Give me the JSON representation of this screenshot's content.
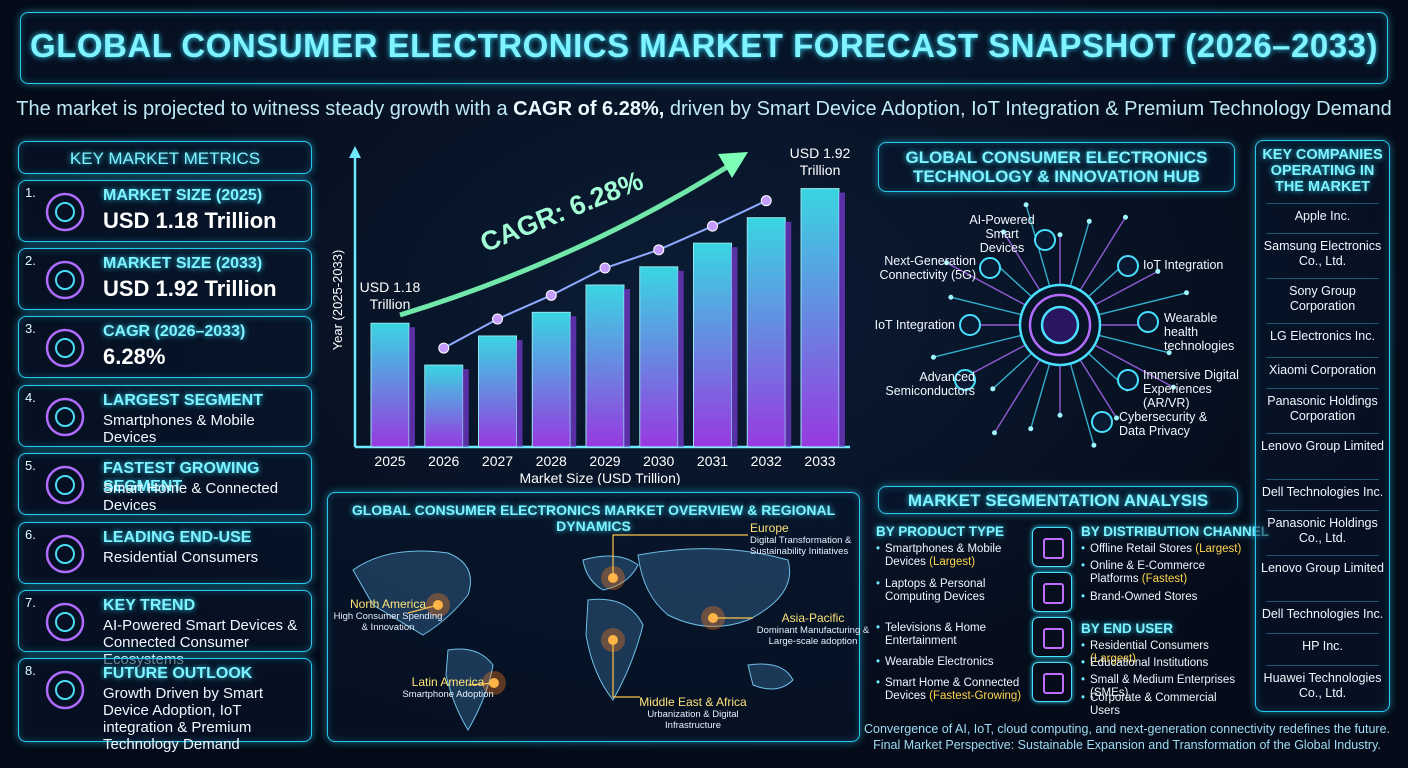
{
  "header": {
    "title": "GLOBAL CONSUMER ELECTRONICS MARKET FORECAST SNAPSHOT (2026–2033)",
    "subtitle_before": "The market is projected to witness steady growth with a ",
    "subtitle_bold": "CAGR of 6.28%,",
    "subtitle_after": " driven by Smart Device Adoption, IoT Integration & Premium Technology Demand"
  },
  "metrics": {
    "title": "KEY MARKET METRICS",
    "items": [
      {
        "number": "1.",
        "label": "MARKET SIZE (2025)",
        "value": "USD 1.18 Trillion"
      },
      {
        "number": "2.",
        "label": "MARKET SIZE (2033)",
        "value": "USD 1.92 Trillion"
      },
      {
        "number": "3.",
        "label": "CAGR (2026–2033)",
        "value": "6.28%"
      },
      {
        "number": "4.",
        "label": "LARGEST SEGMENT",
        "value": "Smartphones & Mobile Devices"
      },
      {
        "number": "5.",
        "label": "FASTEST GROWING SEGMENT",
        "value": "Smart Home & Connected Devices"
      },
      {
        "number": "6.",
        "label": "LEADING END-USE",
        "value": "Residential Consumers"
      },
      {
        "number": "7.",
        "label": "KEY TREND",
        "value": "AI-Powered Smart Devices & Connected Consumer Ecosystems"
      },
      {
        "number": "8.",
        "label": "FUTURE OUTLOOK",
        "value": "Growth Driven by Smart Device Adoption, IoT integration & Premium Technology Demand"
      }
    ]
  },
  "chart_data": {
    "type": "bar",
    "categories": [
      "2025",
      "2026",
      "2027",
      "2028",
      "2029",
      "2030",
      "2031",
      "2032",
      "2033"
    ],
    "values": [
      1.18,
      0.95,
      1.11,
      1.24,
      1.39,
      1.49,
      1.62,
      1.76,
      1.92
    ],
    "value_labels": [
      "USD 1.18 Trillion",
      null,
      null,
      null,
      null,
      null,
      null,
      null,
      "USD 1.92 Trillion"
    ],
    "ylim": [
      0.5,
      2.0
    ],
    "x_label": "Market Size (USD Trillion)",
    "y_label": "Year (2025-2033)",
    "annotation": "CAGR: 6.28%",
    "color": "#3ee6f2",
    "color_end": "#a43cf0"
  },
  "hub": {
    "title": "GLOBAL CONSUMER ELECTRONICS TECHNOLOGY & INNOVATION HUB",
    "nodes": [
      "AI-Powered Smart Devices",
      "Next-Generation Connectivity (5G)",
      "IoT Integration",
      "IoT Integration",
      "Wearable health technologies",
      "Advanced Semiconductors",
      "Immersive Digital Experiences (AR/VR)",
      "Cybersecurity & Data Privacy"
    ]
  },
  "map": {
    "title": "GLOBAL CONSUMER ELECTRONICS MARKET OVERVIEW & REGIONAL DYNAMICS",
    "regions": [
      {
        "name": "Europe",
        "note": "Digital Transformation & Sustainability Initiatives"
      },
      {
        "name": "North America",
        "note": "High Consumer Spending & Innovation"
      },
      {
        "name": "Asia-Pacific",
        "note": "Dominant Manufacturing & Large-scale adoption"
      },
      {
        "name": "Latin America",
        "note": "Smartphone Adoption"
      },
      {
        "name": "Middle East & Africa",
        "note": "Urbanization & Digital Infrastructure"
      }
    ]
  },
  "segmentation": {
    "title": "MARKET SEGMENTATION ANALYSIS",
    "product_type": {
      "title": "BY PRODUCT TYPE",
      "items": [
        {
          "text": "Smartphones & Mobile Devices",
          "note": "(Largest)"
        },
        {
          "text": "Laptops & Personal Computing Devices"
        },
        {
          "text": "Televisions & Home Entertainment"
        },
        {
          "text": "Wearable Electronics"
        },
        {
          "text": "Smart Home & Connected Devices",
          "note": "(Fastest-Growing)"
        }
      ]
    },
    "distribution_channel": {
      "title": "BY DISTRIBUTION CHANNEL",
      "items": [
        {
          "text": "Offline Retail Stores",
          "note": "(Largest)"
        },
        {
          "text": "Online & E-Commerce Platforms",
          "note": "(Fastest)"
        },
        {
          "text": "Brand-Owned Stores"
        }
      ]
    },
    "end_user": {
      "title": "BY END USER",
      "items": [
        {
          "text": "Residential Consumers",
          "note": "(Largest)"
        },
        {
          "text": "Educational Institutions"
        },
        {
          "text": "Small & Medium Enterprises (SMEs)"
        },
        {
          "text": "Corporate & Commercial Users"
        }
      ]
    }
  },
  "companies": {
    "title": "KEY COMPANIES OPERATING IN THE MARKET",
    "items": [
      "Apple Inc.",
      "Samsung Electronics Co., Ltd.",
      "Sony Group Corporation",
      "LG Electronics Inc.",
      "Xiaomi Corporation",
      "Panasonic Holdings Corporation",
      "Lenovo Group Limited",
      "Dell Technologies Inc.",
      "Panasonic Holdings Co., Ltd.",
      "Lenovo Group Limited",
      "Dell Technologies Inc.",
      "HP Inc.",
      "Huawei Technologies Co., Ltd."
    ]
  },
  "footer": [
    "Convergence of AI, IoT, cloud computing, and next-generation connectivity redefines the future.",
    "Final Market Perspective: Sustainable Expansion and Transformation of the Global Industry."
  ]
}
